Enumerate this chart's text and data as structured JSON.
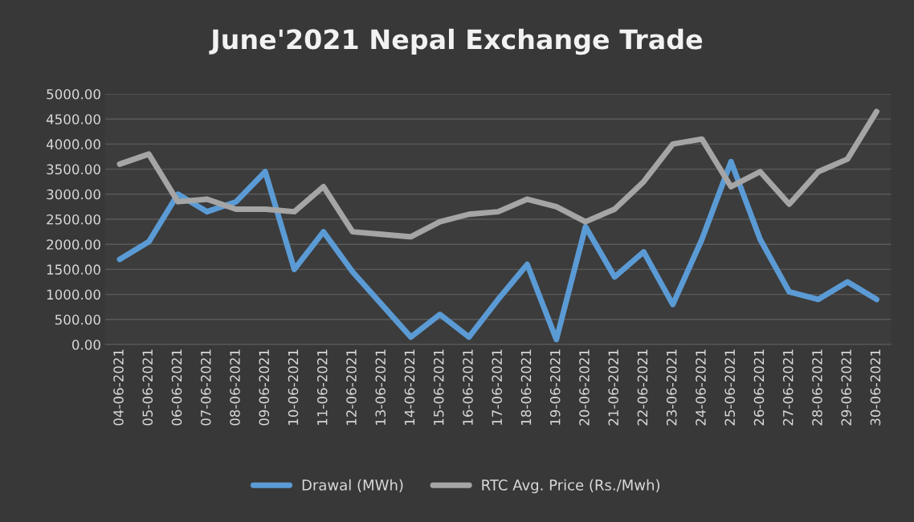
{
  "chart_data": {
    "type": "line",
    "title": "June'2021 Nepal Exchange Trade",
    "categories": [
      "04-06-2021",
      "05-06-2021",
      "06-06-2021",
      "07-06-2021",
      "08-06-2021",
      "09-06-2021",
      "10-06-2021",
      "11-06-2021",
      "12-06-2021",
      "13-06-2021",
      "14-06-2021",
      "15-06-2021",
      "16-06-2021",
      "17-06-2021",
      "18-06-2021",
      "19-06-2021",
      "20-06-2021",
      "21-06-2021",
      "22-06-2021",
      "23-06-2021",
      "24-06-2021",
      "25-06-2021",
      "26-06-2021",
      "27-06-2021",
      "28-06-2021",
      "29-06-2021",
      "30-06-2021"
    ],
    "series": [
      {
        "name": "Drawal (MWh)",
        "color": "#5b9bd5",
        "values": [
          1700,
          2050,
          3000,
          2650,
          2850,
          3450,
          1500,
          2250,
          1450,
          800,
          150,
          600,
          150,
          900,
          1600,
          100,
          2350,
          1350,
          1850,
          800,
          2100,
          3650,
          2100,
          1050,
          900,
          1250,
          900
        ]
      },
      {
        "name": "RTC Avg. Price (Rs./Mwh)",
        "color": "#a5a5a5",
        "values": [
          3600,
          3800,
          2850,
          2900,
          2700,
          2700,
          2650,
          3150,
          2250,
          2200,
          2150,
          2450,
          2600,
          2650,
          2900,
          2750,
          2450,
          2700,
          3250,
          4000,
          4100,
          3150,
          3450,
          2800,
          3450,
          3700,
          4650
        ]
      }
    ],
    "ylim": [
      0,
      5000
    ],
    "yticks": [
      {
        "value": 0,
        "label": "0.00"
      },
      {
        "value": 500,
        "label": "500.00"
      },
      {
        "value": 1000,
        "label": "1000.00"
      },
      {
        "value": 1500,
        "label": "1500.00"
      },
      {
        "value": 2000,
        "label": "2000.00"
      },
      {
        "value": 2500,
        "label": "2500.00"
      },
      {
        "value": 3000,
        "label": "3000.00"
      },
      {
        "value": 3500,
        "label": "3500.00"
      },
      {
        "value": 4000,
        "label": "4000.00"
      },
      {
        "value": 4500,
        "label": "4500.00"
      },
      {
        "value": 5000,
        "label": "5000.00"
      }
    ],
    "grid": "y",
    "legend": "bottom",
    "marker": "none",
    "line_style": "solid"
  }
}
